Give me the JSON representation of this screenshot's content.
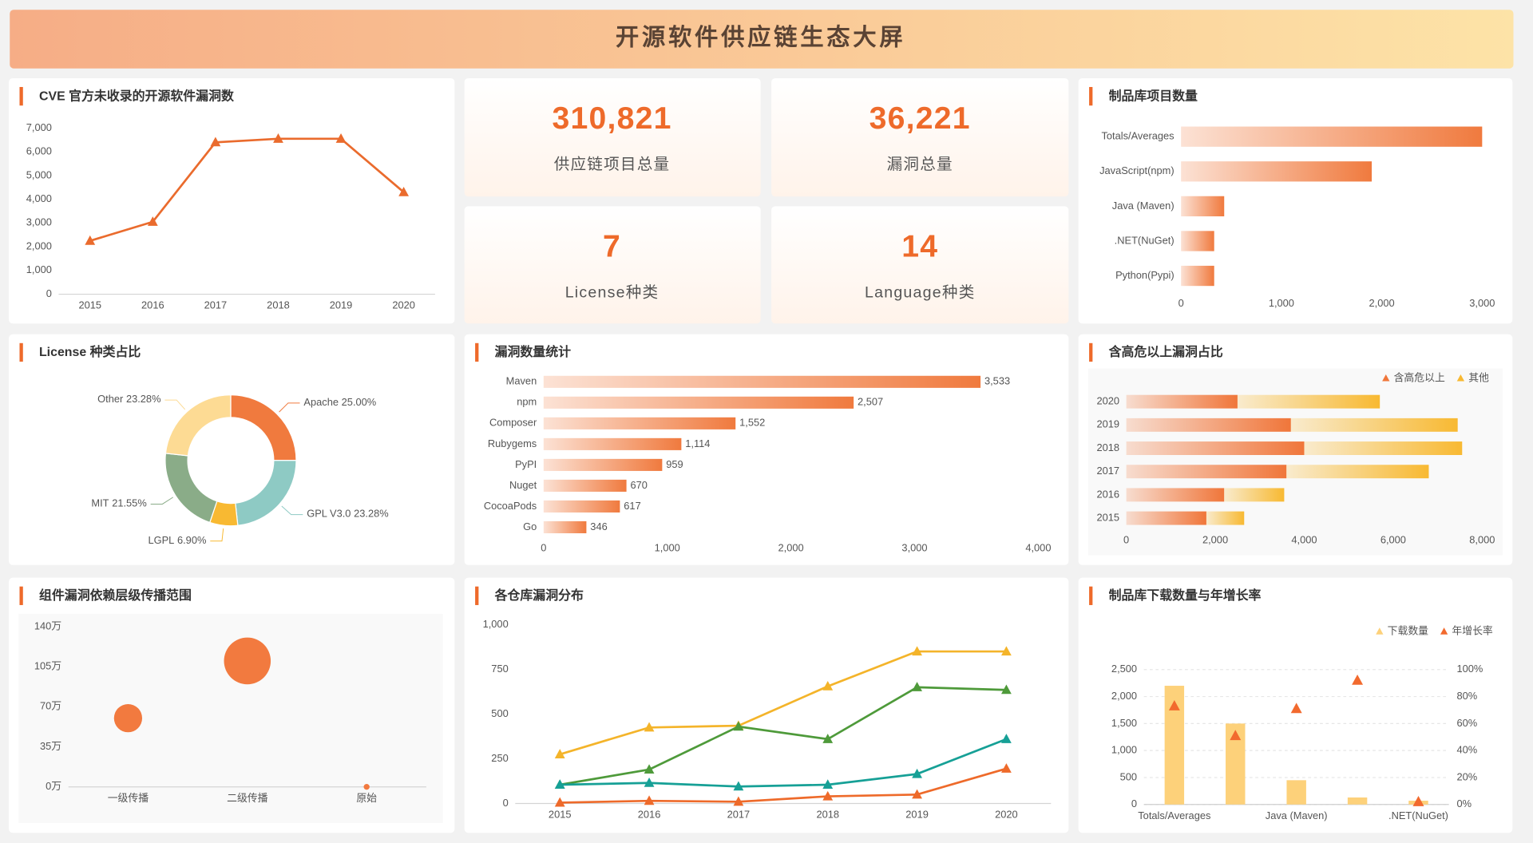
{
  "title": "开源软件供应链生态大屏",
  "kpis": [
    {
      "value": "310,821",
      "label": "供应链项目总量"
    },
    {
      "value": "36,221",
      "label": "漏洞总量"
    },
    {
      "value": "7",
      "label": "License种类"
    },
    {
      "value": "14",
      "label": "Language种类"
    }
  ],
  "chart_data": [
    {
      "type": "line",
      "title": "CVE 官方未收录的开源软件漏洞数",
      "categories": [
        "2015",
        "2016",
        "2017",
        "2018",
        "2019",
        "2020"
      ],
      "values": [
        2250,
        3050,
        6400,
        6550,
        6550,
        4300
      ],
      "color": "#ea6b2d",
      "marker": "triangle",
      "ylim": [
        0,
        7000
      ],
      "yticks": [
        0,
        {
          "value": 1000,
          "label": "1,000"
        },
        {
          "value": 2000,
          "label": "2,000"
        },
        {
          "value": 3000,
          "label": "3,000"
        },
        {
          "value": 4000,
          "label": "4,000"
        },
        {
          "value": 5000,
          "label": "5,000"
        },
        {
          "value": 6000,
          "label": "6,000"
        },
        {
          "value": 7000,
          "label": "7,000"
        }
      ],
      "grid": false
    },
    {
      "type": "bar",
      "orientation": "horizontal",
      "title": "制品库项目数量",
      "categories": [
        "Totals/Averages",
        "JavaScript(npm)",
        "Java (Maven)",
        ".NET(NuGet)",
        "Python(Pypi)"
      ],
      "values": [
        3000,
        1900,
        430,
        330,
        330
      ],
      "color": "#f07a3e",
      "gradient": true,
      "xlim": [
        0,
        3000
      ],
      "xticks": [
        0,
        {
          "value": 1000,
          "label": "1,000"
        },
        {
          "value": 2000,
          "label": "2,000"
        },
        {
          "value": 3000,
          "label": "3,000"
        }
      ]
    },
    {
      "type": "pie",
      "donut": true,
      "title": "License 种类占比",
      "categories": [
        "Apache",
        "GPL V3.0",
        "LGPL",
        "MIT",
        "Other"
      ],
      "values": [
        25.0,
        23.28,
        6.9,
        21.55,
        23.28
      ],
      "value_labels": [
        "25.00%",
        "23.28%",
        "6.90%",
        "21.55%",
        "23.28%"
      ],
      "colors": [
        "#f07a3e",
        "#8ecac4",
        "#f8b932",
        "#8aac88",
        "#fddb94"
      ]
    },
    {
      "type": "bar",
      "orientation": "horizontal",
      "title": "漏洞数量统计",
      "categories": [
        "Maven",
        "npm",
        "Composer",
        "Rubygems",
        "PyPI",
        "Nuget",
        "CocoaPods",
        "Go"
      ],
      "values": [
        3533,
        2507,
        1552,
        1114,
        959,
        670,
        617,
        346
      ],
      "value_labels": [
        "3,533",
        "2,507",
        "1,552",
        "1,114",
        "959",
        "670",
        "617",
        "346"
      ],
      "color": "#f07a3e",
      "gradient": true,
      "xlim": [
        0,
        4000
      ],
      "xticks": [
        0,
        {
          "value": 1000,
          "label": "1,000"
        },
        {
          "value": 2000,
          "label": "2,000"
        },
        {
          "value": 3000,
          "label": "3,000"
        },
        {
          "value": 4000,
          "label": "4,000"
        }
      ]
    },
    {
      "type": "bar",
      "orientation": "horizontal",
      "stacked": true,
      "title": "含高危以上漏洞占比",
      "categories": [
        "2020",
        "2019",
        "2018",
        "2017",
        "2016",
        "2015"
      ],
      "series": [
        {
          "name": "含高危以上",
          "color": "#f0763a",
          "values": [
            2500,
            3700,
            4000,
            3600,
            2200,
            1800
          ]
        },
        {
          "name": "其他",
          "color": "#f8b932",
          "values": [
            3200,
            3750,
            3550,
            3200,
            1350,
            850
          ]
        }
      ],
      "gradient": true,
      "legend": "top-right",
      "xlim": [
        0,
        8000
      ],
      "xticks": [
        0,
        {
          "value": 2000,
          "label": "2,000"
        },
        {
          "value": 4000,
          "label": "4,000"
        },
        {
          "value": 6000,
          "label": "6,000"
        },
        {
          "value": 8000,
          "label": "8,000"
        }
      ]
    },
    {
      "type": "scatter",
      "title": "组件漏洞依赖层级传播范围",
      "categories": [
        "一级传播",
        "二级传播",
        "原始"
      ],
      "values": [
        60,
        110,
        0
      ],
      "color": "#f27a3f",
      "ylim": [
        0,
        140
      ],
      "yticks": [
        {
          "value": 0,
          "label": "0万"
        },
        {
          "value": 35,
          "label": "35万"
        },
        {
          "value": 70,
          "label": "70万"
        },
        {
          "value": 105,
          "label": "105万"
        },
        {
          "value": 140,
          "label": "140万"
        }
      ]
    },
    {
      "type": "line",
      "title": "各仓库漏洞分布",
      "categories": [
        "2015",
        "2016",
        "2017",
        "2018",
        "2019",
        "2020"
      ],
      "series": [
        {
          "color": "#f4b42a",
          "values": [
            275,
            425,
            435,
            655,
            850,
            850
          ]
        },
        {
          "color": "#4e9a3a",
          "values": [
            105,
            190,
            430,
            360,
            650,
            635
          ]
        },
        {
          "color": "#16a096",
          "values": [
            105,
            115,
            95,
            105,
            165,
            360
          ]
        },
        {
          "color": "#ee6a2a",
          "values": [
            5,
            15,
            10,
            40,
            50,
            195
          ]
        }
      ],
      "marker": "triangle",
      "ylim": [
        0,
        1000
      ],
      "yticks": [
        0,
        250,
        500,
        750,
        {
          "value": 1000,
          "label": "1,000"
        }
      ],
      "grid": false
    },
    {
      "type": "bar",
      "title": "制品库下载数量与年增长率",
      "categories": [
        "Totals/Averages",
        null,
        "Java (Maven)",
        null,
        ".NET(NuGet)"
      ],
      "series": [
        {
          "name": "下载数量",
          "color": "#fdd17a",
          "values": [
            2200,
            1500,
            450,
            130,
            70
          ]
        },
        {
          "name": "年增长率",
          "color": "#f26a2e",
          "type": "scatter",
          "marker": "triangle",
          "axis": "y2",
          "values": [
            73,
            51,
            71,
            92,
            2
          ]
        }
      ],
      "legend": "top-right",
      "grid": true,
      "ylim": [
        0,
        2500
      ],
      "yticks": [
        0,
        500,
        {
          "value": 1000,
          "label": "1,000"
        },
        {
          "value": 1500,
          "label": "1,500"
        },
        {
          "value": 2000,
          "label": "2,000"
        },
        {
          "value": 2500,
          "label": "2,500"
        }
      ],
      "y2lim": [
        0,
        100
      ],
      "y2ticks": [
        {
          "value": 0,
          "label": "0%"
        },
        {
          "value": 20,
          "label": "20%"
        },
        {
          "value": 40,
          "label": "40%"
        },
        {
          "value": 60,
          "label": "60%"
        },
        {
          "value": 80,
          "label": "80%"
        },
        {
          "value": 100,
          "label": "100%"
        }
      ]
    }
  ]
}
